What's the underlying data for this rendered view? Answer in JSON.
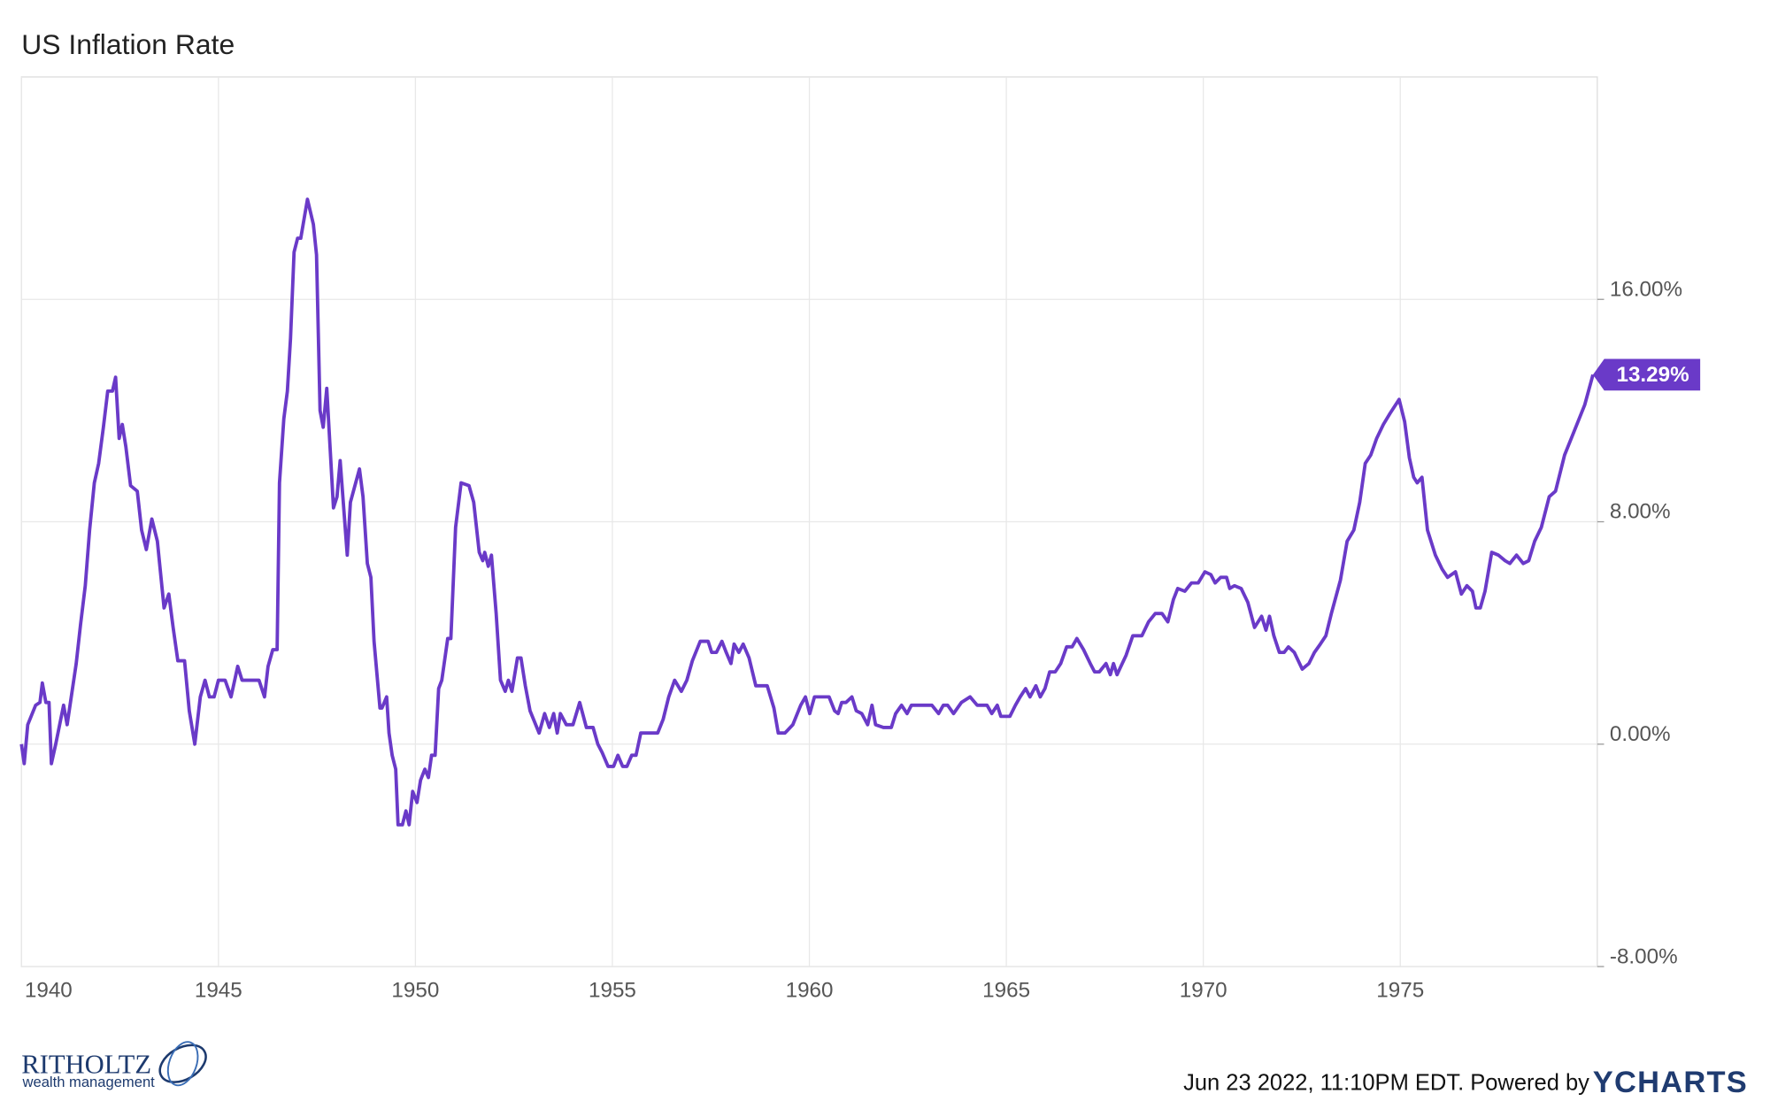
{
  "chart_data": {
    "type": "line",
    "title": "US Inflation Rate",
    "x": [
      1940.0,
      1940.07,
      1940.16,
      1940.36,
      1940.47,
      1940.53,
      1940.62,
      1940.7,
      1940.76,
      1940.87,
      1941.07,
      1941.16,
      1941.39,
      1941.5,
      1941.62,
      1941.73,
      1941.85,
      1941.96,
      1942.08,
      1942.19,
      1942.31,
      1942.39,
      1942.48,
      1942.56,
      1942.65,
      1942.77,
      1942.94,
      1943.05,
      1943.17,
      1943.31,
      1943.45,
      1943.62,
      1943.74,
      1943.85,
      1943.97,
      1944.14,
      1944.26,
      1944.4,
      1944.54,
      1944.66,
      1944.77,
      1944.89,
      1945.0,
      1945.17,
      1945.32,
      1945.49,
      1945.6,
      1946.03,
      1946.17,
      1946.26,
      1946.38,
      1946.49,
      1946.55,
      1946.66,
      1946.75,
      1946.83,
      1946.92,
      1947.01,
      1947.09,
      1947.26,
      1947.41,
      1947.49,
      1947.58,
      1947.66,
      1947.75,
      1947.92,
      1948.01,
      1948.09,
      1948.27,
      1948.35,
      1948.58,
      1948.67,
      1948.78,
      1948.87,
      1948.95,
      1949.1,
      1949.15,
      1949.27,
      1949.33,
      1949.41,
      1949.5,
      1949.56,
      1949.67,
      1949.76,
      1949.84,
      1949.93,
      1950.04,
      1950.13,
      1950.24,
      1950.33,
      1950.41,
      1950.5,
      1950.59,
      1950.67,
      1950.82,
      1950.9,
      1951.02,
      1951.16,
      1951.36,
      1951.48,
      1951.62,
      1951.71,
      1951.76,
      1951.85,
      1951.93,
      1952.05,
      1952.16,
      1952.28,
      1952.36,
      1952.45,
      1952.59,
      1952.68,
      1952.79,
      1952.91,
      1953.14,
      1953.28,
      1953.4,
      1953.51,
      1953.6,
      1953.68,
      1953.83,
      1954.0,
      1954.17,
      1954.34,
      1954.51,
      1954.63,
      1954.74,
      1954.89,
      1955.03,
      1955.14,
      1955.26,
      1955.37,
      1955.49,
      1955.6,
      1955.72,
      1956.15,
      1956.29,
      1956.43,
      1956.58,
      1956.75,
      1956.89,
      1957.03,
      1957.23,
      1957.43,
      1957.52,
      1957.64,
      1957.78,
      1957.89,
      1958.01,
      1958.09,
      1958.21,
      1958.32,
      1958.47,
      1958.64,
      1958.93,
      1959.1,
      1959.21,
      1959.38,
      1959.58,
      1959.78,
      1959.9,
      1960.01,
      1960.13,
      1960.5,
      1960.64,
      1960.73,
      1960.82,
      1960.93,
      1961.08,
      1961.19,
      1961.33,
      1961.48,
      1961.59,
      1961.68,
      1961.88,
      1962.08,
      1962.19,
      1962.34,
      1962.48,
      1962.59,
      1963.11,
      1963.28,
      1963.4,
      1963.51,
      1963.66,
      1963.86,
      1964.08,
      1964.26,
      1964.51,
      1964.63,
      1964.77,
      1964.86,
      1965.09,
      1965.23,
      1965.35,
      1965.49,
      1965.6,
      1965.75,
      1965.86,
      1965.98,
      1966.1,
      1966.24,
      1966.38,
      1966.53,
      1966.67,
      1966.79,
      1966.96,
      1967.13,
      1967.24,
      1967.36,
      1967.53,
      1967.64,
      1967.72,
      1967.81,
      1968.04,
      1968.21,
      1968.44,
      1968.61,
      1968.78,
      1968.95,
      1969.1,
      1969.24,
      1969.35,
      1969.53,
      1969.7,
      1969.87,
      1970.04,
      1970.19,
      1970.3,
      1970.44,
      1970.59,
      1970.67,
      1970.79,
      1970.96,
      1971.13,
      1971.3,
      1971.48,
      1971.59,
      1971.68,
      1971.79,
      1971.93,
      1972.05,
      1972.16,
      1972.31,
      1972.51,
      1972.68,
      1972.82,
      1972.97,
      1973.11,
      1973.25,
      1973.48,
      1973.65,
      1973.82,
      1973.97,
      1974.11,
      1974.25,
      1974.4,
      1974.57,
      1974.74,
      1974.97,
      1975.11,
      1975.23,
      1975.34,
      1975.43,
      1975.55,
      1975.69,
      1975.89,
      1976.06,
      1976.2,
      1976.4,
      1976.55,
      1976.69,
      1976.83,
      1976.92,
      1977.03,
      1977.15,
      1977.32,
      1977.49,
      1977.66,
      1977.78,
      1977.95,
      1978.12,
      1978.26,
      1978.41,
      1978.58,
      1978.78,
      1978.94,
      1979.17,
      1979.34,
      1979.51,
      1979.68,
      1979.89
    ],
    "series": [
      {
        "color": "#6a3ac8",
        "values": [
          0.0,
          -0.7,
          0.7,
          1.4,
          1.5,
          2.2,
          1.5,
          1.5,
          -0.7,
          0,
          1.4,
          0.7,
          2.9,
          4.3,
          5.7,
          7.7,
          9.4,
          10.1,
          11.4,
          12.7,
          12.7,
          13.2,
          11.0,
          11.5,
          10.7,
          9.3,
          9.1,
          7.7,
          7.0,
          8.1,
          7.3,
          4.9,
          5.4,
          4.2,
          3.0,
          3.0,
          1.2,
          0,
          1.7,
          2.3,
          1.7,
          1.7,
          2.3,
          2.3,
          1.7,
          2.8,
          2.3,
          2.3,
          1.7,
          2.8,
          3.4,
          3.4,
          9.4,
          11.7,
          12.7,
          14.6,
          17.7,
          18.2,
          18.2,
          19.6,
          18.7,
          17.6,
          12.0,
          11.4,
          12.8,
          8.5,
          8.9,
          10.2,
          6.8,
          8.7,
          9.9,
          8.9,
          6.5,
          6.0,
          3.7,
          1.3,
          1.3,
          1.7,
          0.4,
          -0.4,
          -0.9,
          -2.9,
          -2.9,
          -2.4,
          -2.9,
          -1.7,
          -2.1,
          -1.3,
          -0.9,
          -1.2,
          -0.4,
          -0.4,
          2.0,
          2.3,
          3.8,
          3.8,
          7.8,
          9.4,
          9.3,
          8.7,
          6.9,
          6.6,
          6.9,
          6.4,
          6.8,
          4.7,
          2.3,
          1.9,
          2.3,
          1.9,
          3.1,
          3.1,
          2.1,
          1.2,
          0.4,
          1.1,
          0.6,
          1.1,
          0.4,
          1.1,
          0.7,
          0.7,
          1.5,
          0.6,
          0.6,
          0,
          -0.3,
          -0.8,
          -0.8,
          -0.4,
          -0.8,
          -0.8,
          -0.4,
          -0.4,
          0.4,
          0.4,
          0.9,
          1.7,
          2.3,
          1.9,
          2.3,
          3.0,
          3.7,
          3.7,
          3.3,
          3.3,
          3.7,
          3.3,
          2.9,
          3.6,
          3.3,
          3.6,
          3.1,
          2.1,
          2.1,
          1.3,
          0.4,
          0.4,
          0.7,
          1.4,
          1.7,
          1.1,
          1.7,
          1.7,
          1.2,
          1.1,
          1.5,
          1.5,
          1.7,
          1.2,
          1.1,
          0.7,
          1.4,
          0.7,
          0.6,
          0.6,
          1.1,
          1.4,
          1.1,
          1.4,
          1.4,
          1.1,
          1.4,
          1.4,
          1.1,
          1.5,
          1.7,
          1.4,
          1.4,
          1.1,
          1.4,
          1.0,
          1.0,
          1.4,
          1.7,
          2.0,
          1.7,
          2.1,
          1.7,
          2.0,
          2.6,
          2.6,
          2.9,
          3.5,
          3.5,
          3.8,
          3.4,
          2.9,
          2.6,
          2.6,
          2.9,
          2.5,
          2.9,
          2.5,
          3.2,
          3.9,
          3.9,
          4.4,
          4.7,
          4.7,
          4.4,
          5.2,
          5.6,
          5.5,
          5.8,
          5.8,
          6.2,
          6.1,
          5.8,
          6.0,
          6.0,
          5.6,
          5.7,
          5.6,
          5.1,
          4.2,
          4.6,
          4.1,
          4.6,
          3.9,
          3.3,
          3.3,
          3.5,
          3.3,
          2.7,
          2.9,
          3.3,
          3.6,
          3.9,
          4.7,
          5.9,
          7.3,
          7.7,
          8.7,
          10.1,
          10.4,
          11.0,
          11.5,
          11.9,
          12.4,
          11.6,
          10.3,
          9.6,
          9.4,
          9.6,
          7.7,
          6.8,
          6.3,
          6.0,
          6.2,
          5.4,
          5.7,
          5.5,
          4.9,
          4.9,
          5.5,
          6.9,
          6.8,
          6.6,
          6.5,
          6.8,
          6.5,
          6.6,
          7.3,
          7.8,
          8.9,
          9.1,
          10.4,
          11.0,
          11.6,
          12.2,
          13.29
        ]
      }
    ],
    "end_label": "13.29%",
    "xlim": [
      1940,
      1980
    ],
    "xticks": [
      1940,
      1945,
      1950,
      1955,
      1960,
      1965,
      1970,
      1975
    ],
    "ylim": [
      -8,
      24
    ],
    "yticks": [
      {
        "value": 16,
        "label": "16.00%"
      },
      {
        "value": 8,
        "label": "8.00%"
      },
      {
        "value": 0,
        "label": "0.00%"
      },
      {
        "value": -8,
        "label": "-8.00%"
      }
    ],
    "grid": true
  },
  "footer": {
    "timestamp": "Jun 23 2022, 11:10PM EDT. Powered by",
    "brand": "YCHARTS",
    "logo_name": "RITHOLTZ",
    "logo_sub": "wealth management"
  }
}
